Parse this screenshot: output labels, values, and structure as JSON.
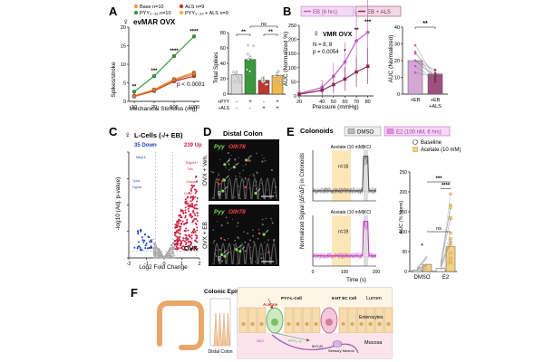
{
  "panels": {
    "A": {
      "letter": "A",
      "title": "evMAR OVX",
      "legend": [
        "Base n=10",
        "PYY₃₋₃₆ n=10",
        "ALS n=9",
        "PYY₃₋₃₆ + ALS n=9"
      ],
      "ylabel": "Spikes/stroke",
      "xlabel": "Mechanical Stimulus (mg)",
      "pvalue": "p < 0.0001",
      "sig_marks": [
        "**",
        "***",
        "****",
        "****"
      ],
      "bar_ylabel": "Total Spikes",
      "bar_sig": [
        "**",
        "ns",
        "**"
      ],
      "bar_row_labels": [
        "+PYY",
        "+ALS"
      ],
      "bar_row_values": [
        [
          "-",
          "+",
          "-",
          "+"
        ],
        [
          "-",
          "-",
          "+",
          "+"
        ]
      ]
    },
    "B": {
      "letter": "B",
      "legend": [
        "EB (6 hrs)",
        "EB + ALS"
      ],
      "title": "VMR OVX",
      "n_text": "N = 8, 8",
      "pvalue": "p = 0.0054",
      "ylabel": "AUC (Normalized %)",
      "xlabel": "Pressure (mmHg)",
      "sig_marks": [
        "*",
        "**",
        "***"
      ],
      "auc_ylabel": "AUC (Normalized)",
      "auc_sig": "**",
      "auc_xlabels": [
        "+EB",
        "+EB\n+ALS"
      ]
    },
    "C": {
      "letter": "C",
      "title": "L-Cells (-/+ EB)",
      "down": "35 Down",
      "up": "239 Up",
      "ylabel": "-log10 (Adj. p-value)",
      "xlabel": "Log2 Fold Change",
      "tag": "OVX",
      "genes_down": [
        "Mep1b",
        "Tyro1",
        "Cyp4a"
      ],
      "genes_up": [
        "B3gnt3+",
        "Tnfs",
        "Ceacam",
        "Col12",
        "Olfr78"
      ]
    },
    "D": {
      "letter": "D",
      "title": "Distal Colon",
      "stain_pyy": "Pyy",
      "stain_olfr": "Olfr78",
      "row_labels": [
        "OVX + Veh.",
        "OVX + EB"
      ]
    },
    "E": {
      "letter": "E",
      "title": "Colonoids",
      "legend": [
        "DMSO",
        "E2 (100 nM, 6 hrs)"
      ],
      "acetate": "Acetate (10 mM)",
      "kcl": "KCl",
      "n_top": "n=16",
      "n_bot": "n=19",
      "ylabel": "Normalized Signal (ΔF/ΔF) in Colonoids",
      "xlabel": "Time (s)",
      "x_ticks": [
        "0",
        "100",
        "200"
      ],
      "right_legend": [
        "Baseline",
        "Acetate (10 mM)"
      ],
      "right_ylabel": "AUC (% Norm)",
      "right_xlabels": [
        "DMSO",
        "E2"
      ],
      "right_sig": [
        "*",
        "ns",
        "***",
        "****"
      ]
    },
    "F": {
      "letter": "F",
      "title": "Colonic Epithelium",
      "labels": [
        "Distal Colon",
        "Lumen",
        "Enterocytes",
        "Mucosa",
        "Acetate",
        "PYY-L-Cell",
        "5-HT EC Cell",
        "5HT₃R",
        "PYY₃₋₃₆",
        "NE2",
        "Sensory Neuron"
      ]
    }
  },
  "chart_data": [
    {
      "type": "line",
      "title": "evMAR OVX",
      "xlabel": "Mechanical Stimulus (mg)",
      "ylabel": "Spikes/stroke",
      "x": [
        10,
        20,
        500,
        1000
      ],
      "ylim": [
        0,
        20
      ],
      "yticks": [
        0,
        5,
        10,
        15,
        20
      ],
      "series": [
        {
          "name": "Base",
          "color": "#e8a23b",
          "values": [
            1.5,
            3.2,
            6.0,
            7.8
          ]
        },
        {
          "name": "PYY3-36",
          "color": "#3a9a3a",
          "values": [
            2.6,
            6.8,
            12.2,
            17.5
          ]
        },
        {
          "name": "ALS",
          "color": "#c0392b",
          "values": [
            1.3,
            2.8,
            5.4,
            6.8
          ]
        },
        {
          "name": "PYY3-36 + ALS",
          "color": "#e07a30",
          "values": [
            1.4,
            3.0,
            5.7,
            7.4
          ]
        }
      ]
    },
    {
      "type": "bar",
      "ylabel": "Total Spikes",
      "categories": [
        "Base",
        "PYY",
        "ALS",
        "PYY+ALS"
      ],
      "values": [
        25,
        45,
        18,
        24
      ],
      "ylim": [
        0,
        80
      ],
      "yticks": [
        0,
        20,
        40,
        60,
        80
      ],
      "colors": [
        "#d9d9d9",
        "#3a9a3a",
        "#c0392b",
        "#f0b84a"
      ]
    },
    {
      "type": "line",
      "title": "VMR OVX",
      "xlabel": "Pressure (mmHg)",
      "ylabel": "AUC (Normalized %)",
      "x": [
        20,
        40,
        50,
        60,
        70,
        80
      ],
      "ylim": [
        0,
        250
      ],
      "yticks": [
        0,
        50,
        100,
        150,
        200,
        250
      ],
      "series": [
        {
          "name": "EB (6 hrs)",
          "color": "#c05fc0",
          "values": [
            8,
            30,
            70,
            120,
            195,
            225
          ]
        },
        {
          "name": "EB + ALS",
          "color": "#8b2a5a",
          "values": [
            6,
            20,
            40,
            60,
            85,
            105
          ]
        }
      ]
    },
    {
      "type": "bar",
      "ylabel": "AUC (Normalized)",
      "categories": [
        "+EB",
        "+EB +ALS"
      ],
      "values": [
        20,
        12
      ],
      "ylim": [
        0,
        40
      ],
      "yticks": [
        0,
        10,
        20,
        30,
        40
      ],
      "colors": [
        "#d4a8d4",
        "#a05080"
      ]
    },
    {
      "type": "scatter",
      "title": "L-Cells (-/+ EB)",
      "xlabel": "Log2 Fold Change",
      "ylabel": "-log10 (Adj. p-value)",
      "xlim": [
        -2,
        2
      ],
      "ylim": [
        0,
        20
      ],
      "xticks": [
        -2,
        -1,
        0,
        1,
        2
      ],
      "yticks": [
        0,
        5,
        10,
        15,
        20
      ],
      "counts": {
        "down": 35,
        "up": 239
      }
    },
    {
      "type": "line",
      "title": "Colonoids",
      "xlabel": "Time (s)",
      "ylabel": "Normalized Signal",
      "xlim": [
        0,
        250
      ],
      "ylim": [
        -0.2,
        1.2
      ],
      "series": [
        {
          "name": "DMSO mean",
          "color": "#333333"
        },
        {
          "name": "E2 mean",
          "color": "#c040c0"
        }
      ]
    },
    {
      "type": "bar",
      "ylabel": "AUC (% Norm)",
      "categories": [
        "DMSO Baseline",
        "DMSO Acetate",
        "E2 Baseline",
        "E2 Acetate"
      ],
      "values": [
        4,
        18,
        8,
        62
      ],
      "ylim": [
        0,
        250
      ],
      "yticks": [
        0,
        50,
        100,
        150,
        200,
        250
      ],
      "colors": [
        "#ffffff",
        "#f5d080",
        "#ffffff",
        "#f5d080"
      ]
    }
  ]
}
